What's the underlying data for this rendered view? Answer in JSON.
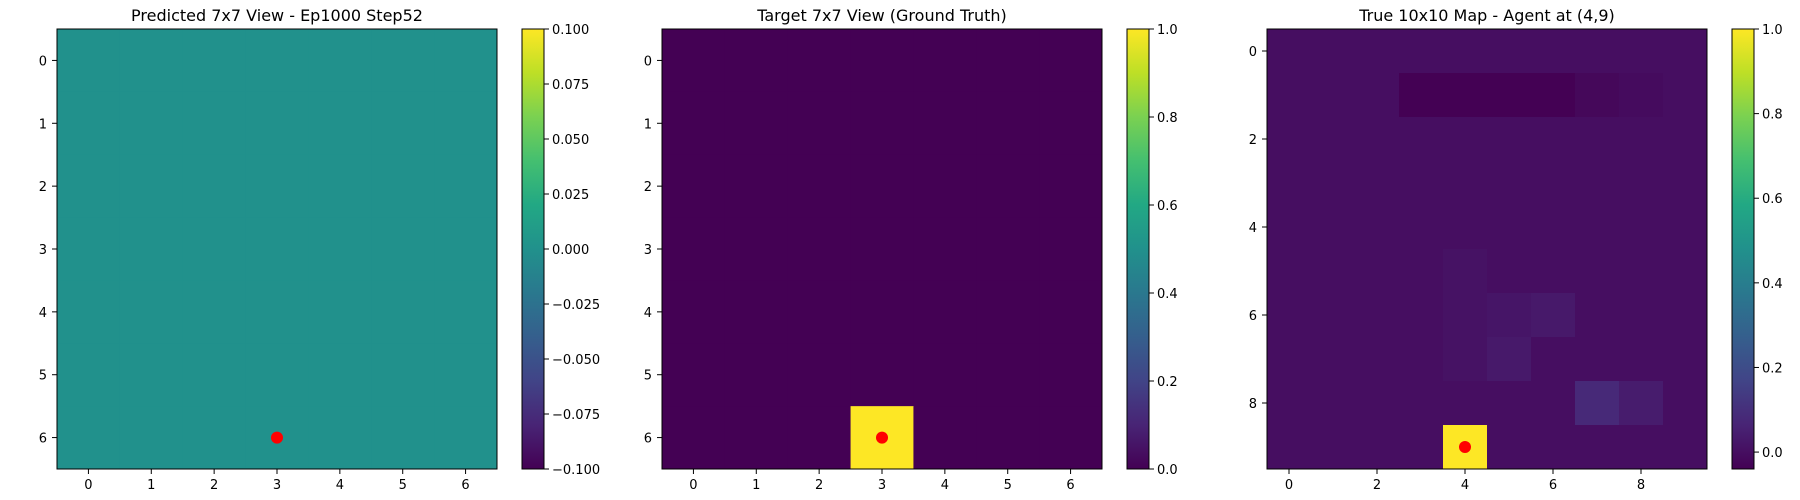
{
  "chart_data": [
    {
      "type": "heatmap",
      "title": "Predicted 7x7 View - Ep1000 Step52",
      "rows": 7,
      "cols": 7,
      "values": [
        [
          0,
          0,
          0,
          0,
          0,
          0,
          0
        ],
        [
          0,
          0,
          0,
          0,
          0,
          0,
          0
        ],
        [
          0,
          0,
          0,
          0,
          0,
          0,
          0
        ],
        [
          0,
          0,
          0,
          0,
          0,
          0,
          0
        ],
        [
          0,
          0,
          0,
          0,
          0,
          0,
          0
        ],
        [
          0,
          0,
          0,
          0,
          0,
          0,
          0
        ],
        [
          0,
          0,
          0,
          0,
          0,
          0,
          0
        ]
      ],
      "vmin": -0.1,
      "vmax": 0.1,
      "colormap": "viridis",
      "x_ticks": [
        0,
        1,
        2,
        3,
        4,
        5,
        6
      ],
      "y_ticks": [
        0,
        1,
        2,
        3,
        4,
        5,
        6
      ],
      "colorbar_ticks": [
        "0.100",
        "0.075",
        "0.050",
        "0.025",
        "0.000",
        "−0.025",
        "−0.050",
        "−0.075",
        "−0.100"
      ],
      "colorbar_tick_values": [
        0.1,
        0.075,
        0.05,
        0.025,
        0,
        -0.025,
        -0.05,
        -0.075,
        -0.1
      ],
      "marker": {
        "x": 3,
        "y": 6,
        "color": "#ff0000"
      }
    },
    {
      "type": "heatmap",
      "title": "Target 7x7 View (Ground Truth)",
      "rows": 7,
      "cols": 7,
      "values": [
        [
          0,
          0,
          0,
          0,
          0,
          0,
          0
        ],
        [
          0,
          0,
          0,
          0,
          0,
          0,
          0
        ],
        [
          0,
          0,
          0,
          0,
          0,
          0,
          0
        ],
        [
          0,
          0,
          0,
          0,
          0,
          0,
          0
        ],
        [
          0,
          0,
          0,
          0,
          0,
          0,
          0
        ],
        [
          0,
          0,
          0,
          0,
          0,
          0,
          0
        ],
        [
          0,
          0,
          0,
          1,
          0,
          0,
          0
        ]
      ],
      "vmin": 0,
      "vmax": 1,
      "colormap": "viridis",
      "x_ticks": [
        0,
        1,
        2,
        3,
        4,
        5,
        6
      ],
      "y_ticks": [
        0,
        1,
        2,
        3,
        4,
        5,
        6
      ],
      "colorbar_ticks": [
        "1.0",
        "0.8",
        "0.6",
        "0.4",
        "0.2",
        "0.0"
      ],
      "colorbar_tick_values": [
        1,
        0.8,
        0.6,
        0.4,
        0.2,
        0
      ],
      "marker": {
        "x": 3,
        "y": 6,
        "color": "#ff0000"
      }
    },
    {
      "type": "heatmap",
      "title": "True 10x10 Map - Agent at (4,9)",
      "rows": 10,
      "cols": 10,
      "values": [
        [
          0,
          0,
          0,
          0,
          0,
          0,
          0,
          0,
          0,
          0
        ],
        [
          0,
          0,
          0,
          -0.04,
          -0.04,
          -0.04,
          -0.04,
          -0.02,
          -0.01,
          0
        ],
        [
          0,
          0,
          0,
          0,
          0,
          0,
          0,
          0,
          0,
          0
        ],
        [
          0,
          0,
          0,
          0,
          0,
          0,
          0,
          0,
          0,
          0
        ],
        [
          0,
          0,
          0,
          0,
          0,
          0,
          0,
          0,
          0,
          0
        ],
        [
          0,
          0,
          0,
          0,
          0.01,
          0,
          0,
          0,
          0,
          0
        ],
        [
          0,
          0,
          0,
          0,
          0.01,
          0.02,
          0.03,
          0,
          0,
          0
        ],
        [
          0,
          0,
          0,
          0,
          0.01,
          0.03,
          0,
          0,
          0,
          0
        ],
        [
          0,
          0,
          0,
          0,
          0,
          0,
          0,
          0.08,
          0.04,
          0
        ],
        [
          0,
          0,
          0,
          0,
          1,
          0,
          0,
          0,
          0,
          0
        ]
      ],
      "vmin": -0.04,
      "vmax": 1,
      "colormap": "viridis",
      "x_ticks": [
        0,
        2,
        4,
        6,
        8
      ],
      "y_ticks": [
        0,
        2,
        4,
        6,
        8
      ],
      "colorbar_ticks": [
        "1.0",
        "0.8",
        "0.6",
        "0.4",
        "0.2",
        "0.0"
      ],
      "colorbar_tick_values": [
        1,
        0.8,
        0.6,
        0.4,
        0.2,
        0
      ],
      "marker": {
        "x": 4,
        "y": 9,
        "color": "#ff0000"
      }
    }
  ]
}
